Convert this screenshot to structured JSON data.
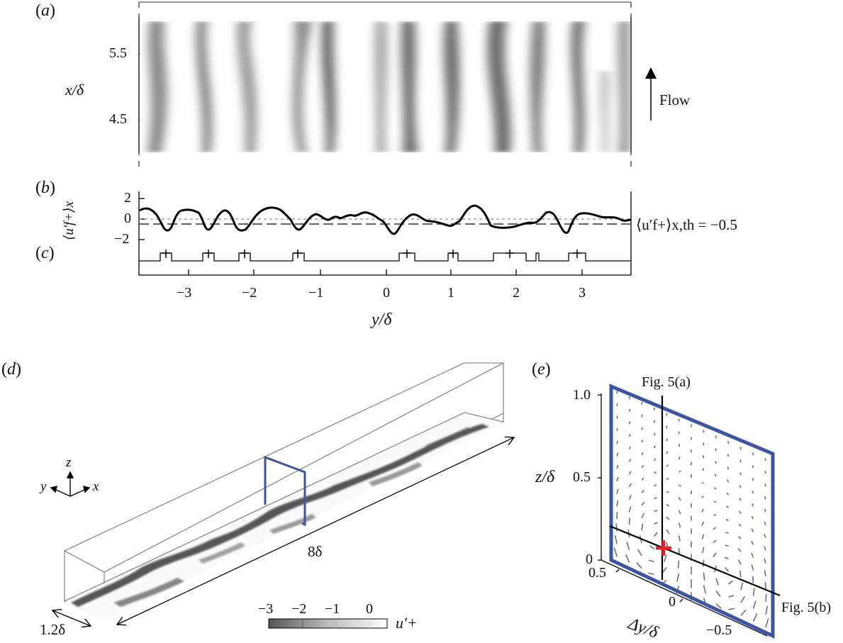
{
  "panels": {
    "a": {
      "label": "(a)",
      "ylabel": "x/δ",
      "yticks": [
        "5.5",
        "4.5"
      ],
      "flow_label": "Flow"
    },
    "b": {
      "label": "(b)",
      "ylabel": "⟨u′f+⟩x",
      "yticks": [
        "2",
        "0",
        "−2"
      ],
      "threshold_label": "⟨u′f+⟩x,th = −0.5"
    },
    "c": {
      "label": "(c)"
    },
    "bc_xaxis": {
      "xlabel": "y/δ",
      "xticks": [
        "−3",
        "−2",
        "−1",
        "0",
        "1",
        "2",
        "3"
      ]
    },
    "d": {
      "label": "(d)",
      "axes_triad": {
        "x": "x",
        "y": "y",
        "z": "z"
      },
      "length_label": "8δ",
      "width_label": "1.2δ",
      "colorbar": {
        "ticks": [
          "−3",
          "−2",
          "−1",
          "0"
        ],
        "label": "u′+"
      }
    },
    "e": {
      "label": "(e)",
      "ylabel": "z/δ",
      "yticks": [
        "1.0",
        "0.5",
        "0"
      ],
      "xlabel": "Δy/δ",
      "xticks": [
        "0.5",
        "0",
        "−0.5"
      ],
      "line_a_label": "Fig. 5(a)",
      "line_b_label": "Fig. 5(b)"
    }
  },
  "colors": {
    "frame_blue": "#3a55a4",
    "marker_red": "#e8202a",
    "box_gray": "#8a8a8a",
    "vector_gray": "#6e6e6e"
  },
  "chart_data": [
    {
      "type": "heatmap",
      "panel": "(a)",
      "title": "",
      "xlabel": "y/δ",
      "ylabel": "x/δ",
      "xlim": [
        -3.75,
        3.75
      ],
      "ylim": [
        4.0,
        6.0
      ],
      "yticks": [
        4.5,
        5.5
      ],
      "colormap": "grayscale (dark = low-speed streaks)",
      "streak_centers_y": [
        -3.4,
        -2.7,
        -2.15,
        -1.3,
        0.35,
        1.0,
        1.6,
        2.0,
        2.9,
        3.7
      ]
    },
    {
      "type": "line",
      "panel": "(b)",
      "xlabel": "y/δ",
      "ylabel": "⟨u′f+⟩x",
      "xlim": [
        -3.75,
        3.75
      ],
      "ylim": [
        -3,
        3
      ],
      "yticks": [
        -2,
        0,
        2
      ],
      "x": [
        -3.75,
        -3.6,
        -3.45,
        -3.35,
        -3.2,
        -3.0,
        -2.85,
        -2.7,
        -2.55,
        -2.4,
        -2.25,
        -2.15,
        -1.95,
        -1.75,
        -1.55,
        -1.4,
        -1.3,
        -1.15,
        -1.0,
        -0.8,
        -0.6,
        -0.4,
        -0.2,
        -0.05,
        0.1,
        0.2,
        0.35,
        0.5,
        0.65,
        0.8,
        1.0,
        1.15,
        1.4,
        1.6,
        1.75,
        1.9,
        2.1,
        2.3,
        2.5,
        2.7,
        2.8,
        2.9,
        3.05,
        3.2,
        3.4,
        3.6,
        3.75
      ],
      "values": [
        0.9,
        1.1,
        -0.5,
        -1.1,
        0.3,
        0.6,
        0.3,
        -1.0,
        0.2,
        0.9,
        -0.3,
        -0.8,
        0.4,
        1.1,
        0.9,
        -0.4,
        -1.0,
        0.1,
        0.5,
        0.0,
        0.3,
        0.5,
        0.7,
        0.3,
        -0.2,
        -1.0,
        -1.5,
        0.0,
        0.5,
        0.1,
        -0.6,
        -0.6,
        0.9,
        1.5,
        0.4,
        -0.8,
        -0.8,
        -0.5,
        -0.5,
        1.1,
        0.4,
        -1.6,
        0.8,
        0.6,
        0.7,
        0.0,
        0.1
      ],
      "reference_lines": [
        {
          "y": 0,
          "style": "dotted",
          "label": ""
        },
        {
          "y": -0.5,
          "style": "dashed",
          "label": "⟨u′f+⟩x,th = −0.5"
        }
      ]
    },
    {
      "type": "line",
      "panel": "(c)",
      "description": "binary indicator of regions where ⟨u′f+⟩x < threshold, with + marking local minima",
      "xlabel": "y/δ",
      "active_intervals": [
        [
          -3.5,
          -3.32
        ],
        [
          -2.8,
          -2.62
        ],
        [
          -2.25,
          -2.08
        ],
        [
          -1.45,
          -1.28
        ],
        [
          0.17,
          0.45
        ],
        [
          0.93,
          1.08
        ],
        [
          1.65,
          2.15
        ],
        [
          2.3,
          2.36
        ],
        [
          2.75,
          3.0
        ]
      ],
      "minima_markers_x": [
        -3.4,
        -2.7,
        -2.16,
        -1.35,
        0.32,
        1.02,
        1.88,
        2.88
      ]
    },
    {
      "type": "heatmap",
      "panel": "(d)",
      "description": "3D box (8δ × 1.2δ) with wall-parallel plane of u′+",
      "colorbar": {
        "label": "u′+",
        "ticks": [
          -3,
          -2,
          -1,
          0
        ],
        "range": [
          -3.5,
          0.5
        ]
      }
    },
    {
      "type": "scatter",
      "panel": "(e)",
      "description": "cross-stream velocity vector field in y–z plane",
      "xlabel": "Δy/δ",
      "ylabel": "z/δ",
      "xlim": [
        0.5,
        -0.5
      ],
      "ylim": [
        0,
        1.0
      ],
      "xticks": [
        0.5,
        0,
        -0.5
      ],
      "yticks": [
        0,
        0.5,
        1.0
      ],
      "marker": {
        "dy": 0.05,
        "z": 0.1,
        "color": "#e8202a"
      }
    }
  ]
}
